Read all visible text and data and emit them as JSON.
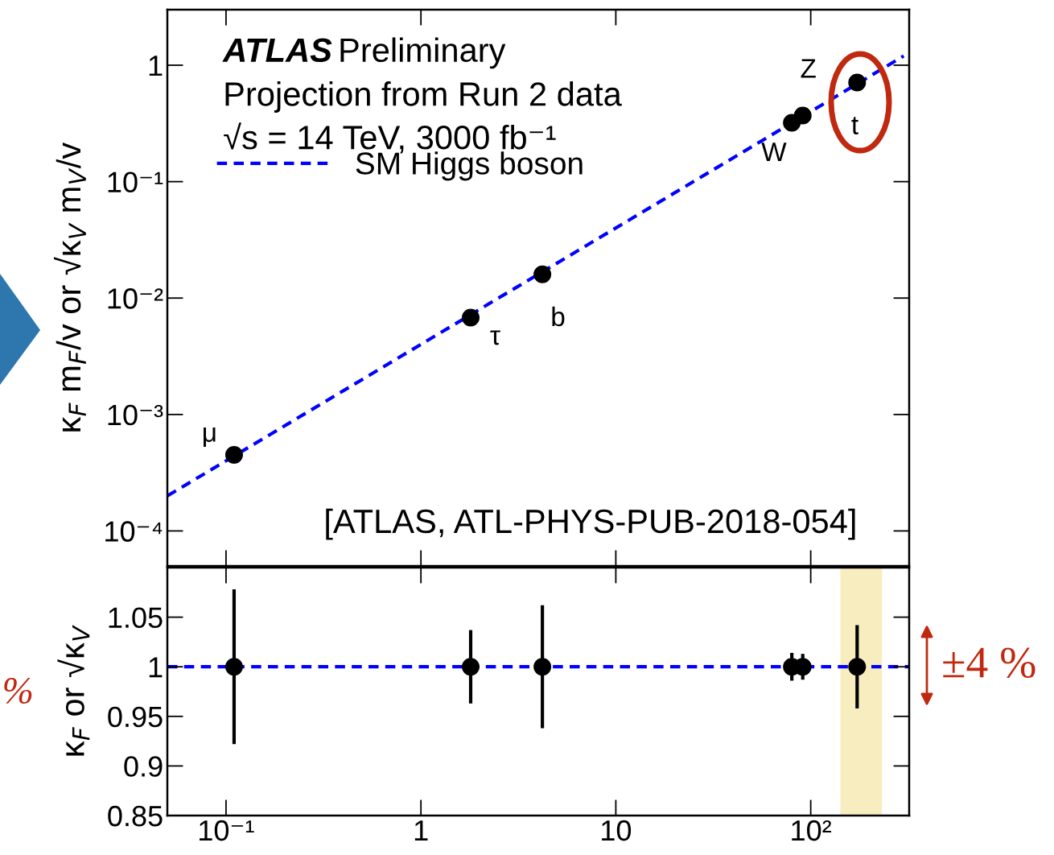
{
  "chart_data": [
    {
      "type": "scatter",
      "ylabel": "κ$_{F}$ m$_{F}$/v or √κ$_{V}$ m$_{V}$/v",
      "log": "xy",
      "xlim": [
        0.05,
        320
      ],
      "ylim": [
        5e-05,
        3
      ],
      "xticks": [
        {
          "value": 0.1,
          "label": null
        },
        {
          "value": 1,
          "label": null
        },
        {
          "value": 10,
          "label": null
        },
        {
          "value": 100,
          "label": null
        }
      ],
      "yticks": [
        {
          "value": 0.0001,
          "label": "10⁻⁴"
        },
        {
          "value": 0.001,
          "label": "10⁻³"
        },
        {
          "value": 0.01,
          "label": "10⁻²"
        },
        {
          "value": 0.1,
          "label": "10⁻¹"
        },
        1
      ],
      "tick_labels": "y",
      "grid": false,
      "legend": "top left",
      "series": [
        {
          "color": "#000000",
          "marker": "circle",
          "x": [
            0.11,
            1.8,
            4.2,
            80,
            91,
            173
          ],
          "values": [
            0.00045,
            0.0068,
            0.016,
            0.32,
            0.37,
            0.71
          ]
        },
        {
          "type": "line",
          "name": "SM Higgs boson",
          "color": "#0000ff",
          "line_style": "dashed",
          "x": [
            0.05,
            300
          ],
          "values": [
            0.0002,
            1.2
          ]
        }
      ],
      "annotations": [
        "ATLAS",
        "Preliminary",
        "Projection from Run 2 data",
        "√s = 14 TeV, 3000 fb⁻¹",
        "[ATLAS, ATL-PHYS-PUB-2018-054]",
        "μ",
        "τ",
        "b",
        "W",
        "Z",
        "t"
      ]
    },
    {
      "type": "scatter",
      "ylabel": "κ$_{F}$ or √κ$_{V}$",
      "log": "x",
      "xlim": [
        0.05,
        320
      ],
      "ylim": [
        0.85,
        1.1
      ],
      "xticks": [
        {
          "value": 0.1,
          "label": "10⁻¹"
        },
        1,
        10,
        {
          "value": 100,
          "label": "10²"
        }
      ],
      "yticks": [
        0.85,
        0.9,
        0.95,
        1,
        1.05
      ],
      "grid": false,
      "series": [
        {
          "color": "#000000",
          "marker": "circle",
          "x": [
            0.11,
            1.8,
            4.2,
            80,
            91,
            173
          ],
          "values": [
            1,
            1,
            1,
            1,
            1,
            1
          ],
          "errors": [
            0.078,
            0.037,
            0.062,
            0.014,
            0.013,
            0.042
          ]
        }
      ],
      "ref_lines": [
        {
          "axis": "y",
          "value": 1,
          "color": "#0000ff",
          "line_style": "dashed"
        }
      ],
      "bands": [
        {
          "axis": "x",
          "from": 142,
          "to": 232,
          "color": "#f8edbf"
        }
      ],
      "annotations": [
        "±4 %",
        "%"
      ]
    }
  ]
}
